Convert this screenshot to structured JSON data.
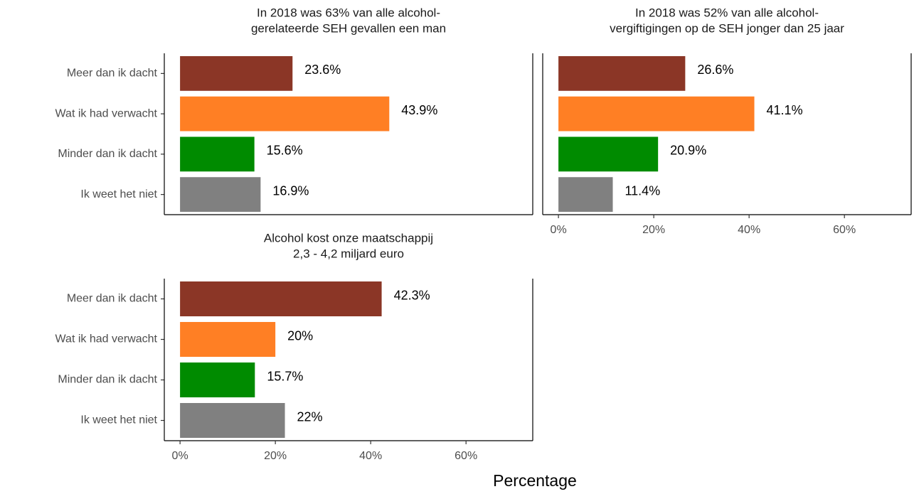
{
  "x_axis_label": "Percentage",
  "chart_data": [
    {
      "type": "bar",
      "orientation": "horizontal",
      "title": [
        "In 2018 was 63% van alle alcohol-",
        "gerelateerde SEH gevallen een man"
      ],
      "categories": [
        "Meer dan ik dacht",
        "Wat ik had verwacht",
        "Minder dan ik dacht",
        "Ik weet het niet"
      ],
      "values": [
        23.6,
        43.9,
        15.6,
        16.9
      ],
      "value_labels": [
        "23.6%",
        "43.9%",
        "15.6%",
        "16.9%"
      ],
      "colors": [
        "#8b3626",
        "#ff7f24",
        "#008b00",
        "#808080"
      ],
      "xlim": [
        -3.3,
        74
      ]
    },
    {
      "type": "bar",
      "orientation": "horizontal",
      "title": [
        "In 2018 was 52% van alle alcohol-",
        "vergiftigingen op de SEH jonger dan 25 jaar"
      ],
      "values": [
        26.6,
        41.1,
        20.9,
        11.4
      ],
      "value_labels": [
        "26.6%",
        "41.1%",
        "20.9%",
        "11.4%"
      ],
      "colors": [
        "#8b3626",
        "#ff7f24",
        "#008b00",
        "#808080"
      ],
      "xlim": [
        -3.3,
        74
      ],
      "xticks": [
        {
          "value": 0,
          "label": "0%"
        },
        {
          "value": 20,
          "label": "20%"
        },
        {
          "value": 40,
          "label": "40%"
        },
        {
          "value": 60,
          "label": "60%"
        }
      ]
    },
    {
      "type": "bar",
      "orientation": "horizontal",
      "title": [
        "Alcohol kost onze maatschappij",
        "2,3 - 4,2 miljard euro"
      ],
      "categories": [
        "Meer dan ik dacht",
        "Wat ik had verwacht",
        "Minder dan ik dacht",
        "Ik weet het niet"
      ],
      "values": [
        42.3,
        20,
        15.7,
        22
      ],
      "value_labels": [
        "42.3%",
        "20%",
        "15.7%",
        "22%"
      ],
      "colors": [
        "#8b3626",
        "#ff7f24",
        "#008b00",
        "#808080"
      ],
      "xlim": [
        -3.3,
        74
      ],
      "xticks": [
        {
          "value": 0,
          "label": "0%"
        },
        {
          "value": 20,
          "label": "20%"
        },
        {
          "value": 40,
          "label": "40%"
        },
        {
          "value": 60,
          "label": "60%"
        }
      ]
    }
  ]
}
